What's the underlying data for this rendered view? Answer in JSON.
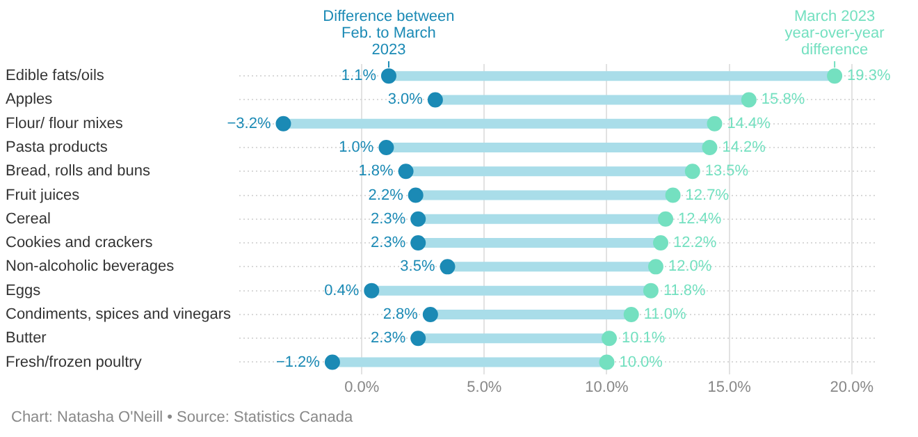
{
  "chart_data": {
    "type": "scatter",
    "orientation": "horizontal",
    "marker": "circle",
    "grid": true,
    "legend": false,
    "categories": [
      "Edible fats/oils",
      "Apples",
      "Flour/ flour mixes",
      "Pasta products",
      "Bread, rolls and buns",
      "Fruit juices",
      "Cereal",
      "Cookies and crackers",
      "Non-alcoholic beverages",
      "Eggs",
      "Condiments, spices and vinegars",
      "Butter",
      "Fresh/frozen poultry"
    ],
    "series": [
      {
        "name": "Difference between Feb. to March 2023",
        "color": "#1b8ab5",
        "values": [
          1.1,
          3.0,
          -3.2,
          1.0,
          1.8,
          2.2,
          2.3,
          2.3,
          3.5,
          0.4,
          2.8,
          2.3,
          -1.2
        ],
        "value_labels": [
          "1.1%",
          "3.0%",
          "−3.2%",
          "1.0%",
          "1.8%",
          "2.2%",
          "2.3%",
          "2.3%",
          "3.5%",
          "0.4%",
          "2.8%",
          "2.3%",
          "−1.2%"
        ]
      },
      {
        "name": "March 2023 year-over-year difference",
        "color": "#74e0c0",
        "values": [
          19.3,
          15.8,
          14.4,
          14.2,
          13.5,
          12.7,
          12.4,
          12.2,
          12.0,
          11.8,
          11.0,
          10.1,
          10.0
        ],
        "value_labels": [
          "19.3%",
          "15.8%",
          "14.4%",
          "14.2%",
          "13.5%",
          "12.7%",
          "12.4%",
          "12.2%",
          "12.0%",
          "11.8%",
          "11.0%",
          "10.1%",
          "10.0%"
        ]
      }
    ],
    "xlim": [
      -5,
      21
    ],
    "xticks": [
      {
        "value": 0,
        "label": "0.0%"
      },
      {
        "value": 5,
        "label": "5.0%"
      },
      {
        "value": 10,
        "label": "10.0%"
      },
      {
        "value": 15,
        "label": "15.0%"
      },
      {
        "value": 20,
        "label": "20.0%"
      }
    ],
    "annotations": [
      "Chart: Natasha O'Neill • Source: Statistics Canada"
    ]
  }
}
